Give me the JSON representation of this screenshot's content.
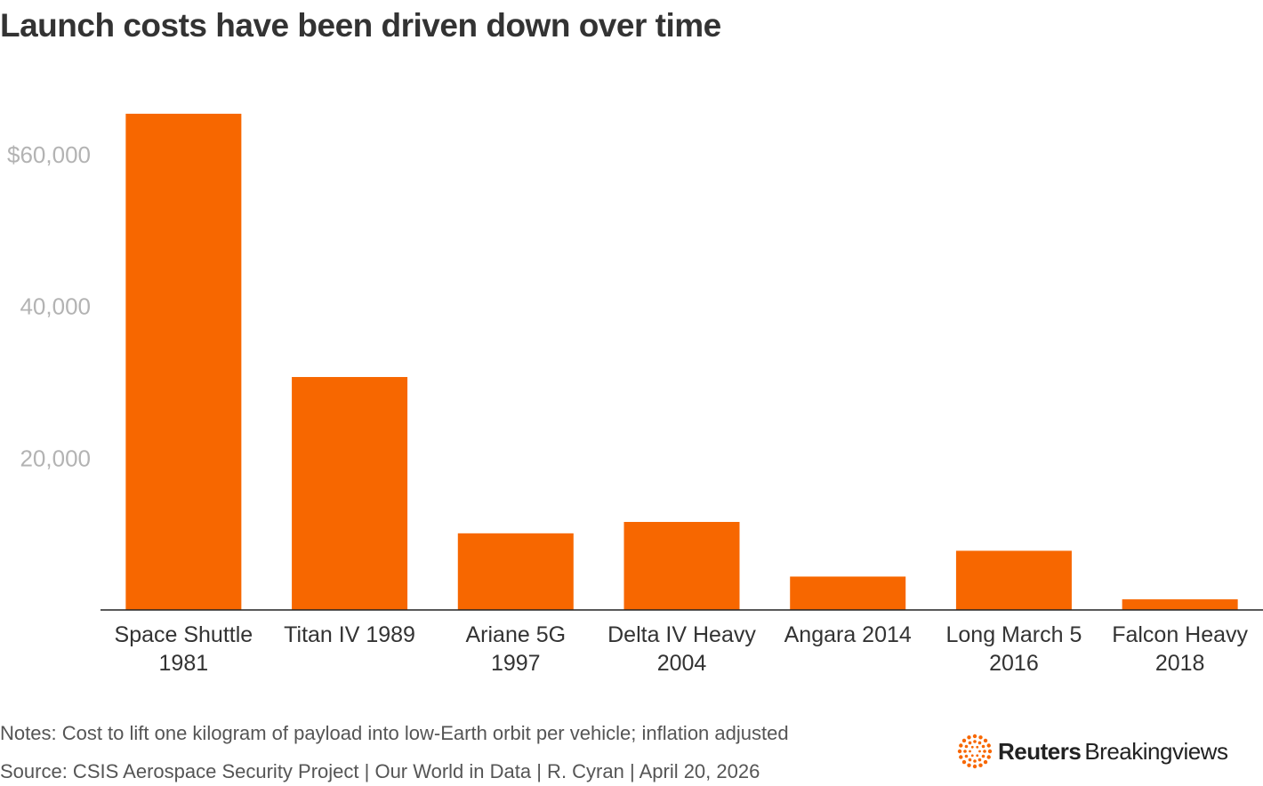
{
  "title": "Launch costs have been driven down over time",
  "chart_data": {
    "type": "bar",
    "categories": [
      [
        "Space Shuttle",
        "1981"
      ],
      [
        "Titan IV 1989"
      ],
      [
        "Ariane 5G",
        "1997"
      ],
      [
        "Delta IV Heavy",
        "2004"
      ],
      [
        "Angara 2014"
      ],
      [
        "Long March 5",
        "2016"
      ],
      [
        "Falcon Heavy",
        "2018"
      ]
    ],
    "values": [
      65400,
      30700,
      10100,
      11600,
      4400,
      7800,
      1400
    ],
    "ylim": [
      0,
      70000
    ],
    "yticks": [
      {
        "value": 20000,
        "label": "20,000"
      },
      {
        "value": 40000,
        "label": "40,000"
      },
      {
        "value": 60000,
        "label": "$60,000"
      }
    ],
    "grid": false,
    "bar_color": "#f76700",
    "xlabel": "",
    "ylabel": ""
  },
  "footer": {
    "notes": "Notes: Cost to lift one kilogram of payload into low-Earth orbit per vehicle; inflation adjusted",
    "source": "Source: CSIS Aerospace Security Project | Our World in Data | R. Cyran | April 20, 2026"
  },
  "brand": {
    "name_bold": "Reuters",
    "name_regular": "Breakingviews",
    "logo_color": "#f76700",
    "icon": "reuters-dots-logo"
  }
}
